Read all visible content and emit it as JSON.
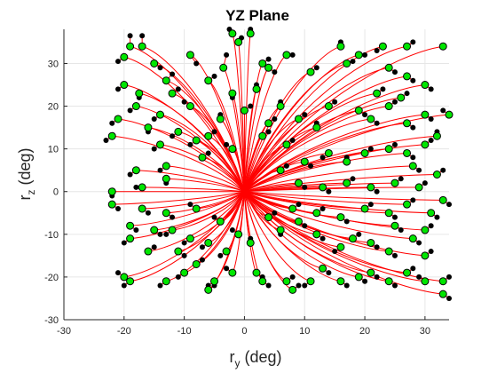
{
  "chart_data": {
    "type": "line",
    "title": "YZ Plane",
    "xlabel": {
      "base": "r",
      "sub": "y",
      "unit": " (deg)"
    },
    "ylabel": {
      "base": "r",
      "sub": "z",
      "unit": " (deg)"
    },
    "xlim": [
      -30,
      34
    ],
    "ylim": [
      -30,
      38
    ],
    "xticks": [
      -30,
      -20,
      -10,
      0,
      10,
      20,
      30
    ],
    "yticks": [
      -30,
      -20,
      -10,
      0,
      10,
      20,
      30
    ],
    "grid": true,
    "colors": {
      "trajectory": "#ff0000",
      "start_marker": "#000000",
      "end_marker_fill": "#00e600",
      "end_marker_edge": "#000000",
      "axes": "#262626",
      "grid": "#e6e6e6"
    },
    "trajectory_origin": [
      0,
      0
    ],
    "endpoints": [
      {
        "green": [
          -20,
          31.5
        ],
        "black": [
          -21,
          30.5
        ]
      },
      {
        "green": [
          -19,
          34
        ],
        "black": [
          -19,
          36.5
        ]
      },
      {
        "green": [
          -17,
          34
        ],
        "black": [
          -17,
          36.5
        ]
      },
      {
        "green": [
          -17.5,
          23
        ],
        "black": [
          -17.5,
          22
        ]
      },
      {
        "green": [
          -15,
          30
        ],
        "black": [
          -14,
          29
        ]
      },
      {
        "green": [
          -13,
          26
        ],
        "black": [
          -12,
          27.5
        ]
      },
      {
        "green": [
          -12,
          23
        ],
        "black": [
          -11,
          24
        ]
      },
      {
        "green": [
          -9,
          32
        ],
        "black": [
          -8,
          30
        ]
      },
      {
        "green": [
          -6,
          26
        ],
        "black": [
          -5,
          27
        ]
      },
      {
        "green": [
          -3.5,
          29
        ],
        "black": [
          -3,
          32
        ]
      },
      {
        "green": [
          -2,
          37
        ],
        "black": [
          -2.5,
          38
        ]
      },
      {
        "green": [
          -1,
          35
        ],
        "black": [
          -0.5,
          36
        ]
      },
      {
        "green": [
          1,
          37
        ],
        "black": [
          1,
          38
        ]
      },
      {
        "green": [
          3,
          30
        ],
        "black": [
          4,
          31
        ]
      },
      {
        "green": [
          4,
          29
        ],
        "black": [
          5,
          28
        ]
      },
      {
        "green": [
          7,
          32
        ],
        "black": [
          8,
          32
        ]
      },
      {
        "green": [
          11,
          28
        ],
        "black": [
          12,
          29
        ]
      },
      {
        "green": [
          16,
          34
        ],
        "black": [
          16,
          35
        ]
      },
      {
        "green": [
          17,
          30
        ],
        "black": [
          18,
          30.5
        ]
      },
      {
        "green": [
          19,
          32
        ],
        "black": [
          20,
          32
        ]
      },
      {
        "green": [
          23,
          34
        ],
        "black": [
          22,
          33
        ]
      },
      {
        "green": [
          24,
          29
        ],
        "black": [
          25,
          28
        ]
      },
      {
        "green": [
          27,
          34
        ],
        "black": [
          28,
          35
        ]
      },
      {
        "green": [
          27,
          27
        ],
        "black": [
          28,
          26
        ]
      },
      {
        "green": [
          30,
          25
        ],
        "black": [
          31,
          24
        ]
      },
      {
        "green": [
          33,
          34
        ],
        "black": [
          33,
          34
        ]
      },
      {
        "green": [
          -20,
          25
        ],
        "black": [
          -21,
          24
        ]
      },
      {
        "green": [
          -18,
          20
        ],
        "black": [
          -19,
          19
        ]
      },
      {
        "green": [
          -21,
          17
        ],
        "black": [
          -22,
          16
        ]
      },
      {
        "green": [
          -22,
          13
        ],
        "black": [
          -23,
          12
        ]
      },
      {
        "green": [
          -14,
          18
        ],
        "black": [
          -15,
          17
        ]
      },
      {
        "green": [
          -16,
          15
        ],
        "black": [
          -16,
          14
        ]
      },
      {
        "green": [
          -11,
          14
        ],
        "black": [
          -12,
          13
        ]
      },
      {
        "green": [
          -8,
          12
        ],
        "black": [
          -9,
          11
        ]
      },
      {
        "green": [
          -4,
          17
        ],
        "black": [
          -4,
          18
        ]
      },
      {
        "green": [
          -2,
          23
        ],
        "black": [
          -2,
          22
        ]
      },
      {
        "green": [
          2,
          24
        ],
        "black": [
          2,
          25
        ]
      },
      {
        "green": [
          6,
          20
        ],
        "black": [
          6,
          21
        ]
      },
      {
        "green": [
          9,
          17
        ],
        "black": [
          10,
          18
        ]
      },
      {
        "green": [
          12,
          15
        ],
        "black": [
          12,
          16
        ]
      },
      {
        "green": [
          14,
          20
        ],
        "black": [
          15,
          21
        ]
      },
      {
        "green": [
          19,
          19
        ],
        "black": [
          20,
          18
        ]
      },
      {
        "green": [
          21,
          17
        ],
        "black": [
          22,
          16
        ]
      },
      {
        "green": [
          24,
          20
        ],
        "black": [
          25,
          21
        ]
      },
      {
        "green": [
          27,
          16
        ],
        "black": [
          28,
          15
        ]
      },
      {
        "green": [
          30,
          18
        ],
        "black": [
          31,
          17
        ]
      },
      {
        "green": [
          32,
          13
        ],
        "black": [
          32,
          14
        ]
      },
      {
        "green": [
          34,
          18
        ],
        "black": [
          33,
          19
        ]
      },
      {
        "green": [
          30,
          11
        ],
        "black": [
          31,
          12
        ]
      },
      {
        "green": [
          27,
          9
        ],
        "black": [
          28,
          8
        ]
      },
      {
        "green": [
          24,
          10
        ],
        "black": [
          25,
          11
        ]
      },
      {
        "green": [
          20,
          9
        ],
        "black": [
          21,
          10
        ]
      },
      {
        "green": [
          17,
          7
        ],
        "black": [
          17,
          8
        ]
      },
      {
        "green": [
          14,
          9
        ],
        "black": [
          13,
          8
        ]
      },
      {
        "green": [
          10,
          7
        ],
        "black": [
          11,
          6
        ]
      },
      {
        "green": [
          6,
          5
        ],
        "black": [
          7,
          6
        ]
      },
      {
        "green": [
          -7,
          8
        ],
        "black": [
          -6,
          9
        ]
      },
      {
        "green": [
          -13,
          6
        ],
        "black": [
          -14,
          5
        ]
      },
      {
        "green": [
          -18,
          5
        ],
        "black": [
          -19,
          4
        ]
      },
      {
        "green": [
          -13,
          3
        ],
        "black": [
          -13,
          2
        ]
      },
      {
        "green": [
          -17,
          1
        ],
        "black": [
          -18,
          1
        ]
      },
      {
        "green": [
          -22,
          0
        ],
        "black": [
          -22,
          -1
        ]
      },
      {
        "green": [
          -22,
          -3
        ],
        "black": [
          -21,
          -4
        ]
      },
      {
        "green": [
          -17,
          -4
        ],
        "black": [
          -16,
          -5
        ]
      },
      {
        "green": [
          -13,
          -5
        ],
        "black": [
          -12,
          -6
        ]
      },
      {
        "green": [
          -8,
          -4
        ],
        "black": [
          -9,
          -3
        ]
      },
      {
        "green": [
          -19,
          -8
        ],
        "black": [
          -18,
          -9
        ]
      },
      {
        "green": [
          -19,
          -11
        ],
        "black": [
          -20,
          -12
        ]
      },
      {
        "green": [
          -15,
          -9
        ],
        "black": [
          -14,
          -10
        ]
      },
      {
        "green": [
          -12,
          -9
        ],
        "black": [
          -13,
          -10
        ]
      },
      {
        "green": [
          -11,
          -14
        ],
        "black": [
          -10,
          -15
        ]
      },
      {
        "green": [
          -8,
          -17
        ],
        "black": [
          -7,
          -16
        ]
      },
      {
        "green": [
          -10,
          -19
        ],
        "black": [
          -11,
          -20
        ]
      },
      {
        "green": [
          -13,
          -21
        ],
        "black": [
          -14,
          -22
        ]
      },
      {
        "green": [
          -19,
          -21
        ],
        "black": [
          -20,
          -22
        ]
      },
      {
        "green": [
          -20,
          -20
        ],
        "black": [
          -21,
          -19
        ]
      },
      {
        "green": [
          -5,
          -21
        ],
        "black": [
          -6,
          -22
        ]
      },
      {
        "green": [
          -6,
          -23
        ],
        "black": [
          -5,
          -22
        ]
      },
      {
        "green": [
          -2,
          -19
        ],
        "black": [
          -3,
          -18
        ]
      },
      {
        "green": [
          1,
          -12
        ],
        "black": [
          1,
          -11
        ]
      },
      {
        "green": [
          2,
          -19
        ],
        "black": [
          3,
          -20
        ]
      },
      {
        "green": [
          3,
          -21
        ],
        "black": [
          4,
          -22
        ]
      },
      {
        "green": [
          7,
          -21
        ],
        "black": [
          8,
          -20
        ]
      },
      {
        "green": [
          8,
          -23
        ],
        "black": [
          9,
          -22
        ]
      },
      {
        "green": [
          11,
          -21
        ],
        "black": [
          10,
          -22
        ]
      },
      {
        "green": [
          13,
          -18
        ],
        "black": [
          14,
          -19
        ]
      },
      {
        "green": [
          16,
          -21
        ],
        "black": [
          17,
          -22
        ]
      },
      {
        "green": [
          19,
          -20
        ],
        "black": [
          20,
          -21
        ]
      },
      {
        "green": [
          21,
          -19
        ],
        "black": [
          22,
          -20
        ]
      },
      {
        "green": [
          24,
          -21
        ],
        "black": [
          25,
          -22
        ]
      },
      {
        "green": [
          27,
          -19
        ],
        "black": [
          28,
          -18
        ]
      },
      {
        "green": [
          30,
          -21
        ],
        "black": [
          29,
          -20
        ]
      },
      {
        "green": [
          33,
          -21
        ],
        "black": [
          34,
          -20
        ]
      },
      {
        "green": [
          33,
          -24
        ],
        "black": [
          34,
          -25
        ]
      },
      {
        "green": [
          30,
          -15
        ],
        "black": [
          31,
          -14
        ]
      },
      {
        "green": [
          28,
          -11
        ],
        "black": [
          29,
          -12
        ]
      },
      {
        "green": [
          24,
          -14
        ],
        "black": [
          25,
          -15
        ]
      },
      {
        "green": [
          21,
          -12
        ],
        "black": [
          22,
          -13
        ]
      },
      {
        "green": [
          18,
          -11
        ],
        "black": [
          19,
          -10
        ]
      },
      {
        "green": [
          16,
          -13
        ],
        "black": [
          15,
          -14
        ]
      },
      {
        "green": [
          12,
          -10
        ],
        "black": [
          13,
          -11
        ]
      },
      {
        "green": [
          9,
          -7
        ],
        "black": [
          10,
          -8
        ]
      },
      {
        "green": [
          6,
          -9
        ],
        "black": [
          6,
          -10
        ]
      },
      {
        "green": [
          4,
          -6
        ],
        "black": [
          5,
          -5
        ]
      },
      {
        "green": [
          8,
          -4
        ],
        "black": [
          9,
          -3
        ]
      },
      {
        "green": [
          12,
          -5
        ],
        "black": [
          13,
          -4
        ]
      },
      {
        "green": [
          16,
          -6
        ],
        "black": [
          17,
          -7
        ]
      },
      {
        "green": [
          20,
          -4
        ],
        "black": [
          21,
          -3
        ]
      },
      {
        "green": [
          24,
          -5
        ],
        "black": [
          25,
          -6
        ]
      },
      {
        "green": [
          27,
          -3
        ],
        "black": [
          28,
          -2
        ]
      },
      {
        "green": [
          31,
          -5
        ],
        "black": [
          32,
          -6
        ]
      },
      {
        "green": [
          33,
          -2
        ],
        "black": [
          34,
          -3
        ]
      },
      {
        "green": [
          30,
          -9
        ],
        "black": [
          31,
          -8
        ]
      },
      {
        "green": [
          25,
          -8
        ],
        "black": [
          26,
          -9
        ]
      },
      {
        "green": [
          29,
          1
        ],
        "black": [
          30,
          2
        ]
      },
      {
        "green": [
          25,
          2
        ],
        "black": [
          26,
          3
        ]
      },
      {
        "green": [
          21,
          1
        ],
        "black": [
          22,
          0
        ]
      },
      {
        "green": [
          17,
          2
        ],
        "black": [
          18,
          3
        ]
      },
      {
        "green": [
          13,
          1
        ],
        "black": [
          14,
          0
        ]
      },
      {
        "green": [
          9,
          2
        ],
        "black": [
          10,
          1
        ]
      },
      {
        "green": [
          32,
          4
        ],
        "black": [
          33,
          5
        ]
      },
      {
        "green": [
          28,
          6
        ],
        "black": [
          29,
          5
        ]
      },
      {
        "green": [
          -1,
          -10
        ],
        "black": [
          -2,
          -9
        ]
      },
      {
        "green": [
          -4,
          -7
        ],
        "black": [
          -5,
          -6
        ]
      },
      {
        "green": [
          -6,
          -12
        ],
        "black": [
          -7,
          -13
        ]
      },
      {
        "green": [
          -3,
          -14
        ],
        "black": [
          -4,
          -15
        ]
      },
      {
        "green": [
          -9,
          -11
        ],
        "black": [
          -10,
          -12
        ]
      },
      {
        "green": [
          -16,
          -14
        ],
        "black": [
          -15,
          -13
        ]
      },
      {
        "green": [
          -2,
          10
        ],
        "black": [
          -3,
          11
        ]
      },
      {
        "green": [
          -6,
          13
        ],
        "black": [
          -5,
          14
        ]
      },
      {
        "green": [
          3,
          13
        ],
        "black": [
          4,
          14
        ]
      },
      {
        "green": [
          7,
          11
        ],
        "black": [
          8,
          12
        ]
      },
      {
        "green": [
          -9,
          20
        ],
        "black": [
          -10,
          21
        ]
      },
      {
        "green": [
          -14,
          11
        ],
        "black": [
          -15,
          10
        ]
      },
      {
        "green": [
          0,
          19
        ],
        "black": [
          1,
          20
        ]
      },
      {
        "green": [
          4,
          16
        ],
        "black": [
          5,
          17
        ]
      },
      {
        "green": [
          22,
          23
        ],
        "black": [
          23,
          24
        ]
      },
      {
        "green": [
          26,
          22
        ],
        "black": [
          27,
          23
        ]
      }
    ]
  }
}
